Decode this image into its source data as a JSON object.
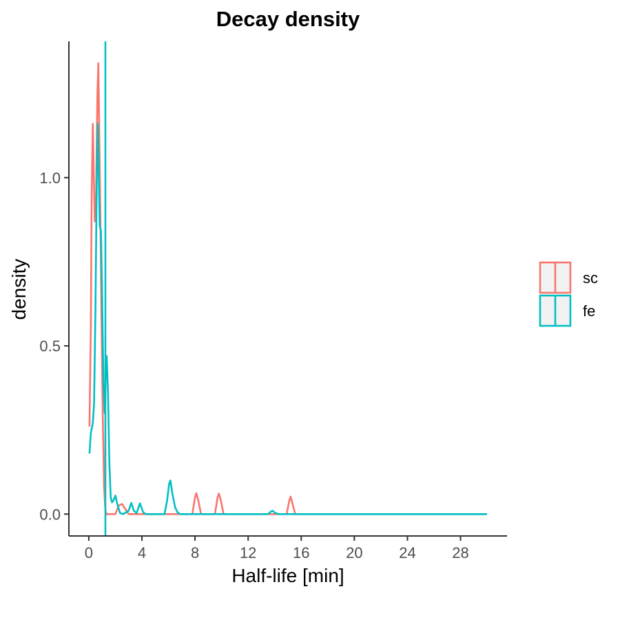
{
  "chart_data": {
    "type": "line",
    "title": "Decay density",
    "xlabel": "Half-life [min]",
    "ylabel": "density",
    "xlim": [
      -1.5,
      31.5
    ],
    "ylim": [
      -0.065,
      1.405
    ],
    "x_ticks": [
      0,
      4,
      8,
      12,
      16,
      20,
      24,
      28
    ],
    "x_tick_labels": [
      "0",
      "4",
      "8",
      "12",
      "16",
      "20",
      "24",
      "28"
    ],
    "y_ticks": [
      0.0,
      0.5,
      1.0
    ],
    "y_tick_labels": [
      "0.0",
      "0.5",
      "1.0"
    ],
    "grid": false,
    "legend_position": "right",
    "series": [
      {
        "name": "sc",
        "color": "#F8766D",
        "points": [
          [
            0.05,
            0.26
          ],
          [
            0.15,
            0.55
          ],
          [
            0.22,
            0.95
          ],
          [
            0.3,
            1.16
          ],
          [
            0.38,
            1.0
          ],
          [
            0.45,
            0.87
          ],
          [
            0.55,
            0.95
          ],
          [
            0.65,
            1.25
          ],
          [
            0.72,
            1.34
          ],
          [
            0.8,
            1.1
          ],
          [
            0.88,
            0.85
          ],
          [
            0.95,
            0.6
          ],
          [
            1.05,
            0.3
          ],
          [
            1.15,
            0.08
          ],
          [
            1.25,
            0.01
          ],
          [
            1.35,
            0.0
          ],
          [
            2.0,
            0.0
          ],
          [
            2.25,
            0.025
          ],
          [
            2.5,
            0.03
          ],
          [
            2.75,
            0.015
          ],
          [
            3.0,
            0.0
          ],
          [
            7.8,
            0.0
          ],
          [
            8.0,
            0.05
          ],
          [
            8.1,
            0.062
          ],
          [
            8.25,
            0.04
          ],
          [
            8.45,
            0.0
          ],
          [
            9.5,
            0.0
          ],
          [
            9.7,
            0.05
          ],
          [
            9.8,
            0.061
          ],
          [
            9.95,
            0.04
          ],
          [
            10.15,
            0.0
          ],
          [
            14.9,
            0.0
          ],
          [
            15.1,
            0.04
          ],
          [
            15.2,
            0.052
          ],
          [
            15.35,
            0.03
          ],
          [
            15.55,
            0.0
          ],
          [
            30.0,
            0.0
          ]
        ]
      },
      {
        "name": "fe",
        "color": "#00BFC4",
        "points": [
          [
            0.05,
            0.18
          ],
          [
            0.15,
            0.24
          ],
          [
            0.3,
            0.27
          ],
          [
            0.4,
            0.33
          ],
          [
            0.5,
            0.6
          ],
          [
            0.6,
            1.0
          ],
          [
            0.68,
            1.16
          ],
          [
            0.75,
            1.0
          ],
          [
            0.82,
            0.86
          ],
          [
            0.92,
            0.84
          ],
          [
            1.0,
            0.65
          ],
          [
            1.1,
            0.4
          ],
          [
            1.2,
            0.3
          ],
          [
            1.28,
            0.42
          ],
          [
            1.35,
            0.47
          ],
          [
            1.45,
            0.35
          ],
          [
            1.55,
            0.15
          ],
          [
            1.65,
            0.05
          ],
          [
            1.75,
            0.035
          ],
          [
            1.85,
            0.04
          ],
          [
            2.0,
            0.055
          ],
          [
            2.15,
            0.03
          ],
          [
            2.35,
            0.003
          ],
          [
            2.6,
            0.0
          ],
          [
            3.0,
            0.01
          ],
          [
            3.2,
            0.033
          ],
          [
            3.4,
            0.01
          ],
          [
            3.6,
            0.003
          ],
          [
            3.85,
            0.032
          ],
          [
            4.1,
            0.005
          ],
          [
            4.3,
            0.0
          ],
          [
            5.7,
            0.0
          ],
          [
            5.9,
            0.04
          ],
          [
            6.05,
            0.09
          ],
          [
            6.15,
            0.1
          ],
          [
            6.3,
            0.06
          ],
          [
            6.5,
            0.02
          ],
          [
            6.7,
            0.004
          ],
          [
            6.9,
            0.0
          ],
          [
            13.5,
            0.0
          ],
          [
            13.7,
            0.007
          ],
          [
            13.85,
            0.01
          ],
          [
            14.05,
            0.003
          ],
          [
            14.3,
            0.0
          ],
          [
            30.0,
            0.0
          ]
        ],
        "vline_x": 1.25
      }
    ]
  }
}
